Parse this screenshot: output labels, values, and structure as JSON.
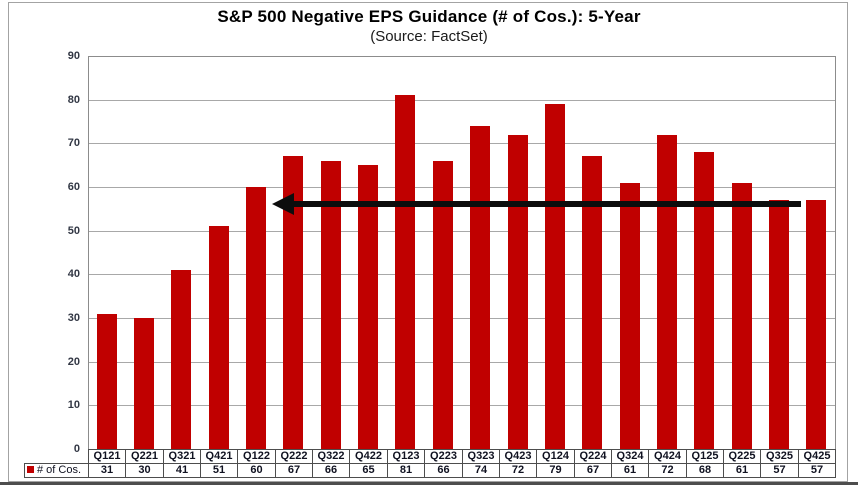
{
  "chart_data": {
    "type": "bar",
    "title": "S&P 500 Negative EPS Guidance (# of Cos.): 5-Year",
    "subtitle": "(Source: FactSet)",
    "categories": [
      "Q121",
      "Q221",
      "Q321",
      "Q421",
      "Q122",
      "Q222",
      "Q322",
      "Q422",
      "Q123",
      "Q223",
      "Q323",
      "Q423",
      "Q124",
      "Q224",
      "Q324",
      "Q424",
      "Q125",
      "Q225",
      "Q325",
      "Q425"
    ],
    "series": [
      {
        "name": "# of Cos.",
        "values": [
          31,
          30,
          41,
          51,
          60,
          67,
          66,
          65,
          81,
          66,
          74,
          72,
          79,
          67,
          61,
          72,
          68,
          61,
          57,
          57
        ]
      }
    ],
    "xlabel": "",
    "ylabel": "",
    "ylim": [
      0,
      90
    ],
    "ytick_step": 10,
    "grid": true,
    "legend_position": "bottom-left",
    "data_table_shown": true,
    "annotation": {
      "type": "arrow",
      "direction": "left",
      "y_value": 56,
      "from_category": "Q425",
      "to_category": "Q122"
    },
    "colors": {
      "bar": "#c00000",
      "gridline": "#a8a8a8",
      "plot_border": "#8c8c8c",
      "table_border": "#4d4d4d",
      "arrow": "#0d0d0d",
      "title_text": "#000000",
      "subtitle_text": "#1a1a1a",
      "axis_text": "#323744",
      "table_text": "#101221",
      "legend_swatch": "#c00000"
    }
  }
}
